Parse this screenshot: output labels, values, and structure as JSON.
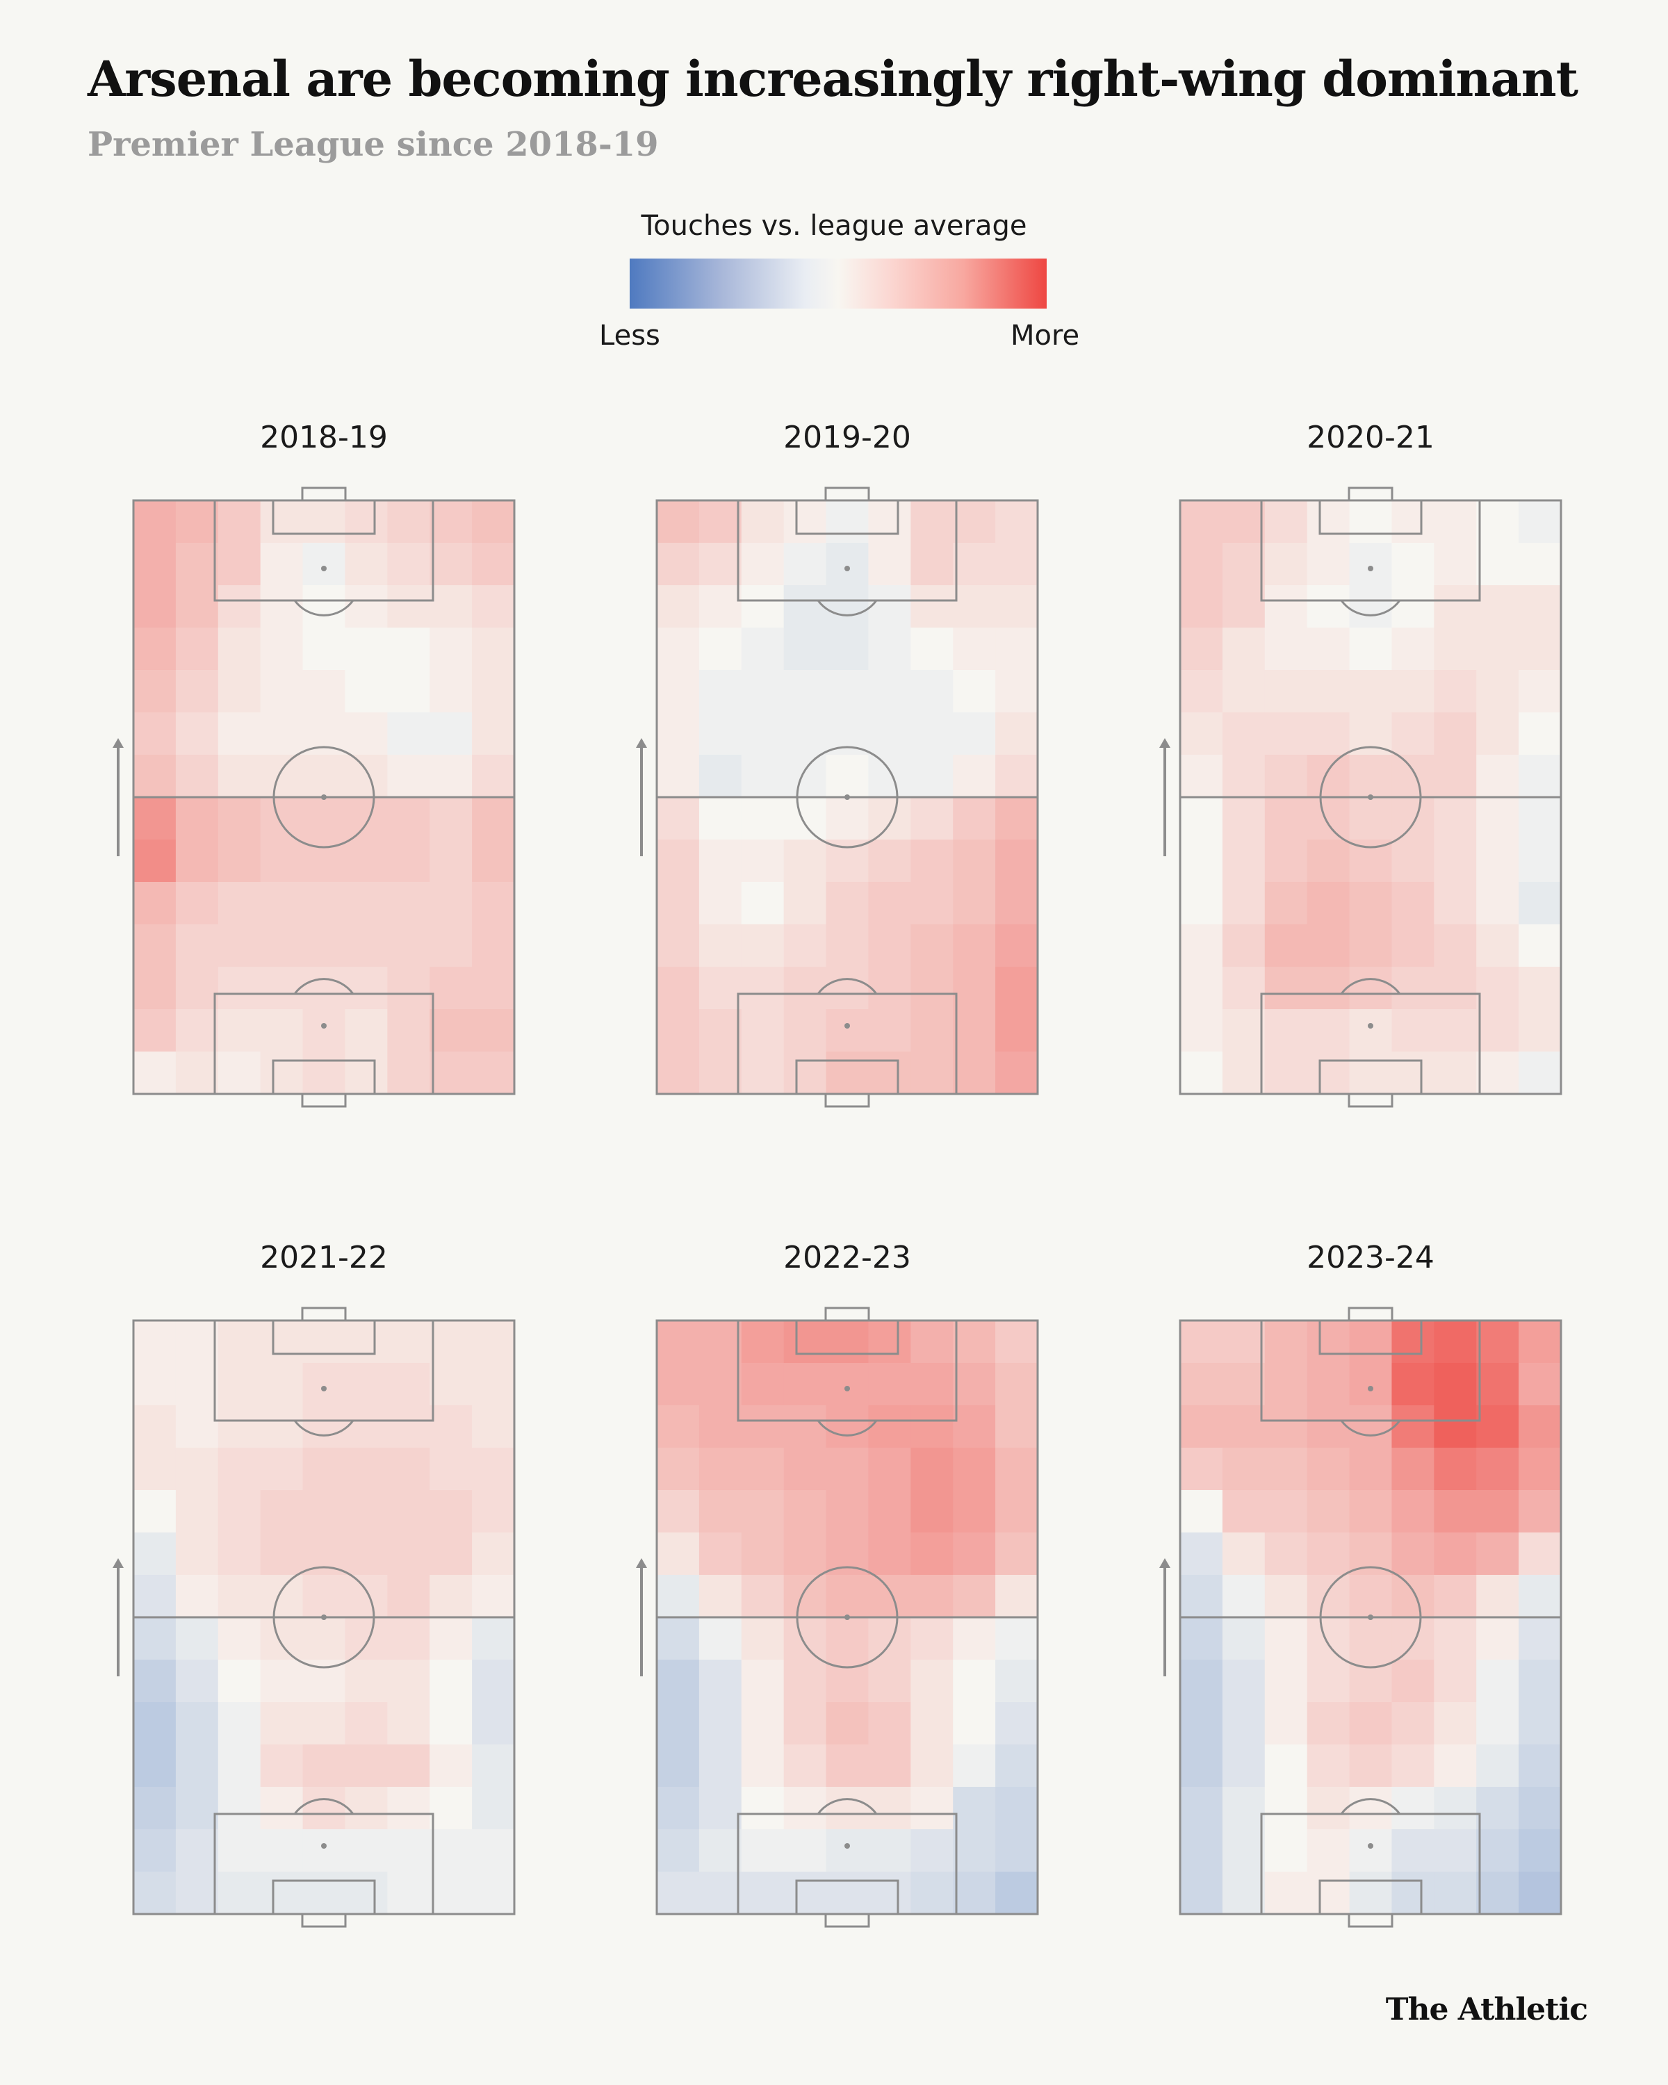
{
  "title": "Arsenal are becoming increasingly right-wing dominant",
  "subtitle": "Premier League since 2018-19",
  "legend": {
    "title": "Touches vs. league average",
    "low_label": "Less",
    "high_label": "More"
  },
  "footer": "The Athletic",
  "colors": {
    "background": "#f7f7f3",
    "neutral": "#f7f6f2",
    "more": "#ee4742",
    "less": "#4f7ac0",
    "pitch_lines": "#8c8c8c"
  },
  "chart_data": {
    "type": "heatmap",
    "value_scale": {
      "min": -1,
      "max": 1,
      "meaning": "touches vs. league average, negative = less, positive = more"
    },
    "grid": {
      "columns": 9,
      "rows": 14,
      "row_order": "attacking end first"
    },
    "attack_direction": "up",
    "panels": [
      {
        "season": "2018-19",
        "values": [
          [
            0.4,
            0.35,
            0.25,
            0.1,
            0.1,
            0.15,
            0.2,
            0.25,
            0.3
          ],
          [
            0.4,
            0.3,
            0.25,
            0.05,
            -0.05,
            0.1,
            0.15,
            0.2,
            0.25
          ],
          [
            0.4,
            0.3,
            0.15,
            0.05,
            0.0,
            0.05,
            0.1,
            0.1,
            0.15
          ],
          [
            0.35,
            0.25,
            0.1,
            0.05,
            0.0,
            0.0,
            0.0,
            0.05,
            0.1
          ],
          [
            0.3,
            0.2,
            0.1,
            0.05,
            0.05,
            0.0,
            0.0,
            0.05,
            0.1
          ],
          [
            0.25,
            0.15,
            0.05,
            0.05,
            0.05,
            0.05,
            -0.05,
            -0.05,
            0.1
          ],
          [
            0.3,
            0.2,
            0.1,
            0.1,
            0.1,
            0.1,
            0.05,
            0.05,
            0.15
          ],
          [
            0.55,
            0.35,
            0.3,
            0.25,
            0.25,
            0.25,
            0.25,
            0.2,
            0.3
          ],
          [
            0.6,
            0.35,
            0.3,
            0.25,
            0.25,
            0.25,
            0.25,
            0.2,
            0.3
          ],
          [
            0.35,
            0.25,
            0.2,
            0.2,
            0.2,
            0.2,
            0.2,
            0.2,
            0.25
          ],
          [
            0.3,
            0.2,
            0.2,
            0.2,
            0.2,
            0.2,
            0.2,
            0.2,
            0.25
          ],
          [
            0.3,
            0.2,
            0.15,
            0.15,
            0.15,
            0.15,
            0.2,
            0.25,
            0.25
          ],
          [
            0.25,
            0.15,
            0.1,
            0.1,
            0.15,
            0.1,
            0.2,
            0.3,
            0.3
          ],
          [
            0.05,
            0.1,
            0.05,
            0.1,
            0.15,
            0.1,
            0.2,
            0.25,
            0.25
          ]
        ]
      },
      {
        "season": "2019-20",
        "values": [
          [
            0.3,
            0.25,
            0.1,
            0.05,
            -0.05,
            0.05,
            0.2,
            0.2,
            0.15
          ],
          [
            0.2,
            0.15,
            0.05,
            -0.05,
            -0.1,
            0.05,
            0.2,
            0.15,
            0.15
          ],
          [
            0.1,
            0.05,
            0.0,
            -0.1,
            -0.1,
            -0.05,
            0.1,
            0.1,
            0.1
          ],
          [
            0.05,
            0.0,
            -0.05,
            -0.1,
            -0.1,
            -0.05,
            0.0,
            0.05,
            0.05
          ],
          [
            0.05,
            -0.05,
            -0.05,
            -0.05,
            -0.05,
            -0.05,
            -0.05,
            0.0,
            0.05
          ],
          [
            0.05,
            -0.05,
            -0.05,
            -0.05,
            -0.05,
            -0.05,
            -0.05,
            -0.05,
            0.1
          ],
          [
            0.05,
            -0.1,
            -0.05,
            -0.05,
            0.0,
            -0.05,
            -0.05,
            0.05,
            0.15
          ],
          [
            0.15,
            0.0,
            0.0,
            0.0,
            0.05,
            0.1,
            0.15,
            0.25,
            0.35
          ],
          [
            0.2,
            0.05,
            0.05,
            0.1,
            0.15,
            0.2,
            0.25,
            0.3,
            0.4
          ],
          [
            0.2,
            0.05,
            0.0,
            0.1,
            0.2,
            0.25,
            0.25,
            0.3,
            0.4
          ],
          [
            0.2,
            0.1,
            0.1,
            0.15,
            0.2,
            0.25,
            0.3,
            0.35,
            0.45
          ],
          [
            0.25,
            0.15,
            0.15,
            0.2,
            0.2,
            0.25,
            0.3,
            0.35,
            0.5
          ],
          [
            0.25,
            0.2,
            0.15,
            0.2,
            0.25,
            0.25,
            0.3,
            0.35,
            0.5
          ],
          [
            0.25,
            0.2,
            0.15,
            0.2,
            0.3,
            0.3,
            0.3,
            0.35,
            0.45
          ]
        ]
      },
      {
        "season": "2020-21",
        "values": [
          [
            0.25,
            0.25,
            0.15,
            0.05,
            0.0,
            0.05,
            0.05,
            0.0,
            -0.05
          ],
          [
            0.25,
            0.2,
            0.1,
            0.05,
            -0.05,
            0.0,
            0.05,
            0.0,
            0.0
          ],
          [
            0.25,
            0.2,
            0.05,
            0.0,
            -0.05,
            0.0,
            0.1,
            0.1,
            0.1
          ],
          [
            0.2,
            0.1,
            0.05,
            0.05,
            0.0,
            0.05,
            0.1,
            0.1,
            0.1
          ],
          [
            0.15,
            0.1,
            0.1,
            0.1,
            0.1,
            0.1,
            0.15,
            0.1,
            0.05
          ],
          [
            0.1,
            0.15,
            0.15,
            0.15,
            0.1,
            0.15,
            0.2,
            0.1,
            0.0
          ],
          [
            0.05,
            0.15,
            0.2,
            0.25,
            0.2,
            0.2,
            0.2,
            0.05,
            -0.05
          ],
          [
            0.0,
            0.15,
            0.25,
            0.25,
            0.2,
            0.2,
            0.15,
            0.05,
            -0.05
          ],
          [
            0.0,
            0.15,
            0.25,
            0.3,
            0.25,
            0.2,
            0.15,
            0.05,
            -0.05
          ],
          [
            0.0,
            0.15,
            0.3,
            0.35,
            0.3,
            0.25,
            0.15,
            0.05,
            -0.1
          ],
          [
            0.05,
            0.2,
            0.35,
            0.35,
            0.3,
            0.25,
            0.2,
            0.1,
            0.0
          ],
          [
            0.05,
            0.15,
            0.3,
            0.3,
            0.25,
            0.2,
            0.2,
            0.15,
            0.1
          ],
          [
            0.05,
            0.1,
            0.15,
            0.15,
            0.1,
            0.15,
            0.15,
            0.15,
            0.1
          ],
          [
            0.0,
            0.1,
            0.15,
            0.15,
            0.1,
            0.1,
            0.1,
            0.05,
            -0.05
          ]
        ]
      },
      {
        "season": "2021-22",
        "values": [
          [
            0.05,
            0.05,
            0.1,
            0.1,
            0.1,
            0.1,
            0.1,
            0.1,
            0.1
          ],
          [
            0.05,
            0.05,
            0.1,
            0.1,
            0.15,
            0.15,
            0.15,
            0.1,
            0.1
          ],
          [
            0.1,
            0.05,
            0.1,
            0.1,
            0.15,
            0.15,
            0.15,
            0.15,
            0.1
          ],
          [
            0.1,
            0.1,
            0.15,
            0.15,
            0.2,
            0.2,
            0.2,
            0.15,
            0.15
          ],
          [
            0.0,
            0.1,
            0.15,
            0.2,
            0.2,
            0.2,
            0.2,
            0.2,
            0.15
          ],
          [
            -0.1,
            0.1,
            0.15,
            0.2,
            0.2,
            0.2,
            0.2,
            0.2,
            0.1
          ],
          [
            -0.15,
            0.05,
            0.1,
            0.1,
            0.15,
            0.15,
            0.2,
            0.1,
            0.05
          ],
          [
            -0.2,
            -0.1,
            0.05,
            0.1,
            0.1,
            0.15,
            0.15,
            0.05,
            -0.1
          ],
          [
            -0.3,
            -0.15,
            0.0,
            0.05,
            0.05,
            0.1,
            0.1,
            0.0,
            -0.15
          ],
          [
            -0.35,
            -0.2,
            -0.05,
            0.1,
            0.1,
            0.15,
            0.1,
            0.0,
            -0.15
          ],
          [
            -0.35,
            -0.2,
            -0.05,
            0.15,
            0.2,
            0.2,
            0.2,
            0.05,
            -0.1
          ],
          [
            -0.3,
            -0.2,
            -0.05,
            0.05,
            0.15,
            0.1,
            0.05,
            0.0,
            -0.1
          ],
          [
            -0.25,
            -0.15,
            -0.05,
            -0.05,
            -0.05,
            -0.05,
            -0.05,
            -0.05,
            -0.05
          ],
          [
            -0.2,
            -0.15,
            -0.1,
            -0.1,
            -0.1,
            -0.1,
            -0.05,
            -0.05,
            -0.05
          ]
        ]
      },
      {
        "season": "2022-23",
        "values": [
          [
            0.4,
            0.4,
            0.5,
            0.55,
            0.55,
            0.5,
            0.4,
            0.35,
            0.25
          ],
          [
            0.4,
            0.4,
            0.45,
            0.45,
            0.45,
            0.45,
            0.45,
            0.4,
            0.3
          ],
          [
            0.35,
            0.4,
            0.4,
            0.4,
            0.45,
            0.5,
            0.5,
            0.45,
            0.3
          ],
          [
            0.3,
            0.35,
            0.35,
            0.4,
            0.4,
            0.45,
            0.55,
            0.5,
            0.35
          ],
          [
            0.2,
            0.3,
            0.3,
            0.35,
            0.4,
            0.45,
            0.55,
            0.5,
            0.35
          ],
          [
            0.1,
            0.25,
            0.3,
            0.35,
            0.4,
            0.45,
            0.5,
            0.45,
            0.3
          ],
          [
            -0.1,
            0.1,
            0.2,
            0.3,
            0.35,
            0.35,
            0.35,
            0.3,
            0.1
          ],
          [
            -0.2,
            -0.05,
            0.1,
            0.2,
            0.25,
            0.2,
            0.15,
            0.05,
            -0.05
          ],
          [
            -0.3,
            -0.15,
            0.05,
            0.2,
            0.25,
            0.2,
            0.1,
            0.0,
            -0.1
          ],
          [
            -0.3,
            -0.15,
            0.05,
            0.2,
            0.3,
            0.25,
            0.1,
            0.0,
            -0.15
          ],
          [
            -0.3,
            -0.15,
            0.05,
            0.15,
            0.25,
            0.25,
            0.1,
            -0.05,
            -0.2
          ],
          [
            -0.25,
            -0.15,
            0.0,
            0.05,
            0.1,
            0.1,
            0.05,
            -0.2,
            -0.25
          ],
          [
            -0.2,
            -0.1,
            -0.05,
            -0.05,
            -0.1,
            -0.1,
            -0.15,
            -0.2,
            -0.25
          ],
          [
            -0.15,
            -0.15,
            -0.15,
            -0.15,
            -0.15,
            -0.15,
            -0.2,
            -0.25,
            -0.35
          ]
        ]
      },
      {
        "season": "2023-24",
        "values": [
          [
            0.25,
            0.25,
            0.35,
            0.4,
            0.45,
            0.75,
            0.8,
            0.7,
            0.5
          ],
          [
            0.3,
            0.3,
            0.35,
            0.4,
            0.45,
            0.8,
            0.85,
            0.75,
            0.45
          ],
          [
            0.35,
            0.35,
            0.35,
            0.4,
            0.4,
            0.7,
            0.85,
            0.8,
            0.55
          ],
          [
            0.25,
            0.3,
            0.3,
            0.35,
            0.4,
            0.55,
            0.7,
            0.65,
            0.5
          ],
          [
            0.0,
            0.25,
            0.25,
            0.3,
            0.35,
            0.45,
            0.55,
            0.55,
            0.4
          ],
          [
            -0.15,
            0.1,
            0.2,
            0.25,
            0.3,
            0.4,
            0.45,
            0.4,
            0.15
          ],
          [
            -0.2,
            -0.05,
            0.1,
            0.2,
            0.25,
            0.3,
            0.25,
            0.1,
            -0.1
          ],
          [
            -0.25,
            -0.1,
            0.05,
            0.15,
            0.2,
            0.2,
            0.15,
            0.05,
            -0.15
          ],
          [
            -0.3,
            -0.15,
            0.05,
            0.15,
            0.2,
            0.25,
            0.15,
            -0.05,
            -0.2
          ],
          [
            -0.3,
            -0.15,
            0.05,
            0.2,
            0.25,
            0.2,
            0.1,
            -0.05,
            -0.2
          ],
          [
            -0.3,
            -0.15,
            0.0,
            0.15,
            0.2,
            0.15,
            0.05,
            -0.1,
            -0.25
          ],
          [
            -0.25,
            -0.1,
            0.0,
            0.1,
            0.05,
            -0.05,
            -0.1,
            -0.2,
            -0.3
          ],
          [
            -0.25,
            -0.1,
            0.0,
            0.05,
            -0.05,
            -0.15,
            -0.15,
            -0.25,
            -0.35
          ],
          [
            -0.25,
            -0.1,
            0.05,
            0.05,
            -0.1,
            -0.2,
            -0.2,
            -0.3,
            -0.4
          ]
        ]
      }
    ]
  }
}
